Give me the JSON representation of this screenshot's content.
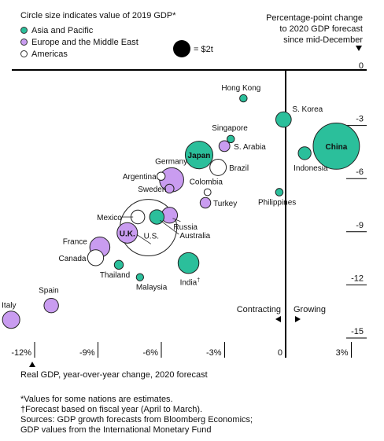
{
  "legend": {
    "size_note": "Circle size indicates value of 2019 GDP*",
    "groups": [
      {
        "name": "Asia and Pacific",
        "color": "#2bbf9b"
      },
      {
        "name": "Europe and the Middle East",
        "color": "#c99cf0"
      },
      {
        "name": "Americas",
        "color": "#ffffff"
      }
    ],
    "scale_label": "= $2t"
  },
  "header_right": {
    "line1": "Percentage-point change",
    "line2": "to 2020 GDP forecast",
    "line3": "since mid-December"
  },
  "annotations": {
    "contracting": "Contracting",
    "growing": "Growing"
  },
  "chart_data": {
    "type": "scatter",
    "xlabel": "Real GDP, year-over-year change, 2020 forecast",
    "ylabel": "Percentage-point change to 2020 GDP forecast since mid-December",
    "xlim": [
      -13,
      3
    ],
    "ylim": [
      -15.5,
      0
    ],
    "x_ticks": [
      "-12%",
      "-9%",
      "-6%",
      "-3%",
      "0",
      "3%"
    ],
    "x_tick_values": [
      -12,
      -9,
      -6,
      -3,
      0,
      3
    ],
    "y_ticks": [
      "0",
      "-3",
      "-6",
      "-9",
      "-12",
      "-15"
    ],
    "y_tick_values": [
      0,
      -3,
      -6,
      -9,
      -12,
      -15
    ],
    "points": [
      {
        "name": "Hong Kong",
        "region": "Asia and Pacific",
        "x": -2.0,
        "y": -1.6,
        "gdp": 0.37
      },
      {
        "name": "S. Korea",
        "region": "Asia and Pacific",
        "x": -0.1,
        "y": -2.8,
        "gdp": 1.6
      },
      {
        "name": "China",
        "region": "Asia and Pacific",
        "x": 2.4,
        "y": -4.3,
        "gdp": 14.3
      },
      {
        "name": "Singapore",
        "region": "Asia and Pacific",
        "x": -2.6,
        "y": -3.9,
        "gdp": 0.37
      },
      {
        "name": "S. Arabia",
        "region": "Europe and the Middle East",
        "x": -2.9,
        "y": -4.3,
        "gdp": 0.79
      },
      {
        "name": "Japan",
        "region": "Asia and Pacific",
        "x": -4.1,
        "y": -4.8,
        "gdp": 5.1
      },
      {
        "name": "Indonesia",
        "region": "Asia and Pacific",
        "x": 0.9,
        "y": -4.7,
        "gdp": 1.1
      },
      {
        "name": "Germany",
        "region": "Europe and the Middle East",
        "x": -5.4,
        "y": -6.2,
        "gdp": 3.9
      },
      {
        "name": "Brazil",
        "region": "Americas",
        "x": -3.2,
        "y": -5.5,
        "gdp": 1.8
      },
      {
        "name": "Argentina",
        "region": "Americas",
        "x": -5.9,
        "y": -6.0,
        "gdp": 0.45
      },
      {
        "name": "Sweden",
        "region": "Europe and the Middle East",
        "x": -5.5,
        "y": -6.7,
        "gdp": 0.53
      },
      {
        "name": "Colombia",
        "region": "Americas",
        "x": -3.7,
        "y": -6.9,
        "gdp": 0.32
      },
      {
        "name": "Philippines",
        "region": "Asia and Pacific",
        "x": -0.3,
        "y": -6.9,
        "gdp": 0.38
      },
      {
        "name": "Turkey",
        "region": "Europe and the Middle East",
        "x": -3.8,
        "y": -7.5,
        "gdp": 0.75
      },
      {
        "name": "Mexico",
        "region": "Americas",
        "x": -7.0,
        "y": -8.3,
        "gdp": 1.26
      },
      {
        "name": "Russia",
        "region": "Europe and the Middle East",
        "x": -5.5,
        "y": -8.2,
        "gdp": 1.7
      },
      {
        "name": "Australia",
        "region": "Asia and Pacific",
        "x": -6.1,
        "y": -8.3,
        "gdp": 1.4
      },
      {
        "name": "U.S.",
        "region": "Americas",
        "x": -6.5,
        "y": -8.9,
        "gdp": 21.4
      },
      {
        "name": "U.K.",
        "region": "Europe and the Middle East",
        "x": -7.5,
        "y": -9.2,
        "gdp": 2.8
      },
      {
        "name": "France",
        "region": "Europe and the Middle East",
        "x": -8.8,
        "y": -10.0,
        "gdp": 2.7
      },
      {
        "name": "Canada",
        "region": "Americas",
        "x": -9.0,
        "y": -10.6,
        "gdp": 1.7
      },
      {
        "name": "Thailand",
        "region": "Asia and Pacific",
        "x": -7.9,
        "y": -11.0,
        "gdp": 0.54
      },
      {
        "name": "India",
        "region": "Asia and Pacific",
        "x": -4.6,
        "y": -10.9,
        "gdp": 2.9
      },
      {
        "name": "Malaysia",
        "region": "Asia and Pacific",
        "x": -6.9,
        "y": -11.7,
        "gdp": 0.36
      },
      {
        "name": "Spain",
        "region": "Europe and the Middle East",
        "x": -11.1,
        "y": -13.3,
        "gdp": 1.4
      },
      {
        "name": "Italy",
        "region": "Europe and the Middle East",
        "x": -13.0,
        "y": -14.1,
        "gdp": 2.0
      }
    ]
  },
  "footnotes": [
    "*Values for some nations are estimates.",
    "†Forecast based on fiscal year (April to March).",
    "Sources: GDP growth forecasts from Bloomberg Economics;",
    "GDP values from the International Monetary Fund"
  ]
}
